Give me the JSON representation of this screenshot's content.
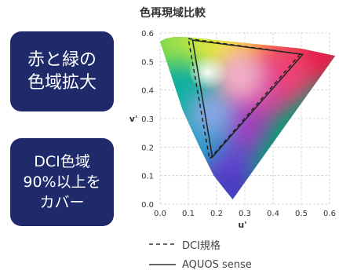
{
  "badges": {
    "top": {
      "lines": [
        "赤と緑の",
        "色域拡大"
      ]
    },
    "bottom": {
      "lines": [
        "DCI色域",
        "90%以上を",
        "カバー"
      ]
    },
    "color": "#1f2a6b"
  },
  "chart_data": {
    "type": "scatter",
    "title": "色再現域比較",
    "xlabel": "u'",
    "ylabel": "v'",
    "xlim": [
      0,
      0.6
    ],
    "ylim": [
      0,
      0.6
    ],
    "xticks": [
      "0.0",
      "0.1",
      "0.2",
      "0.3",
      "0.4",
      "0.5",
      "0.6"
    ],
    "yticks": [
      "0.0",
      "0.1",
      "0.2",
      "0.3",
      "0.4",
      "0.5",
      "0.6"
    ],
    "grid": true,
    "spectral_locus": [
      [
        0.257,
        0.017
      ],
      [
        0.23,
        0.05
      ],
      [
        0.19,
        0.1
      ],
      [
        0.14,
        0.2
      ],
      [
        0.08,
        0.33
      ],
      [
        0.03,
        0.48
      ],
      [
        0.0,
        0.57
      ],
      [
        0.02,
        0.58
      ],
      [
        0.05,
        0.586
      ],
      [
        0.1,
        0.585
      ],
      [
        0.2,
        0.575
      ],
      [
        0.3,
        0.565
      ],
      [
        0.4,
        0.555
      ],
      [
        0.5,
        0.545
      ],
      [
        0.62,
        0.52
      ]
    ],
    "series": [
      {
        "name": "DCI規格",
        "style": "dashed",
        "points": [
          [
            0.1,
            0.58
          ],
          [
            0.496,
            0.526
          ],
          [
            0.175,
            0.158
          ]
        ]
      },
      {
        "name": "AQUOS sense",
        "style": "solid",
        "points": [
          [
            0.115,
            0.575
          ],
          [
            0.505,
            0.525
          ],
          [
            0.185,
            0.165
          ]
        ]
      }
    ]
  },
  "legend": {
    "dci_label": "DCI規格",
    "aquos_label": "AQUOS sense"
  }
}
